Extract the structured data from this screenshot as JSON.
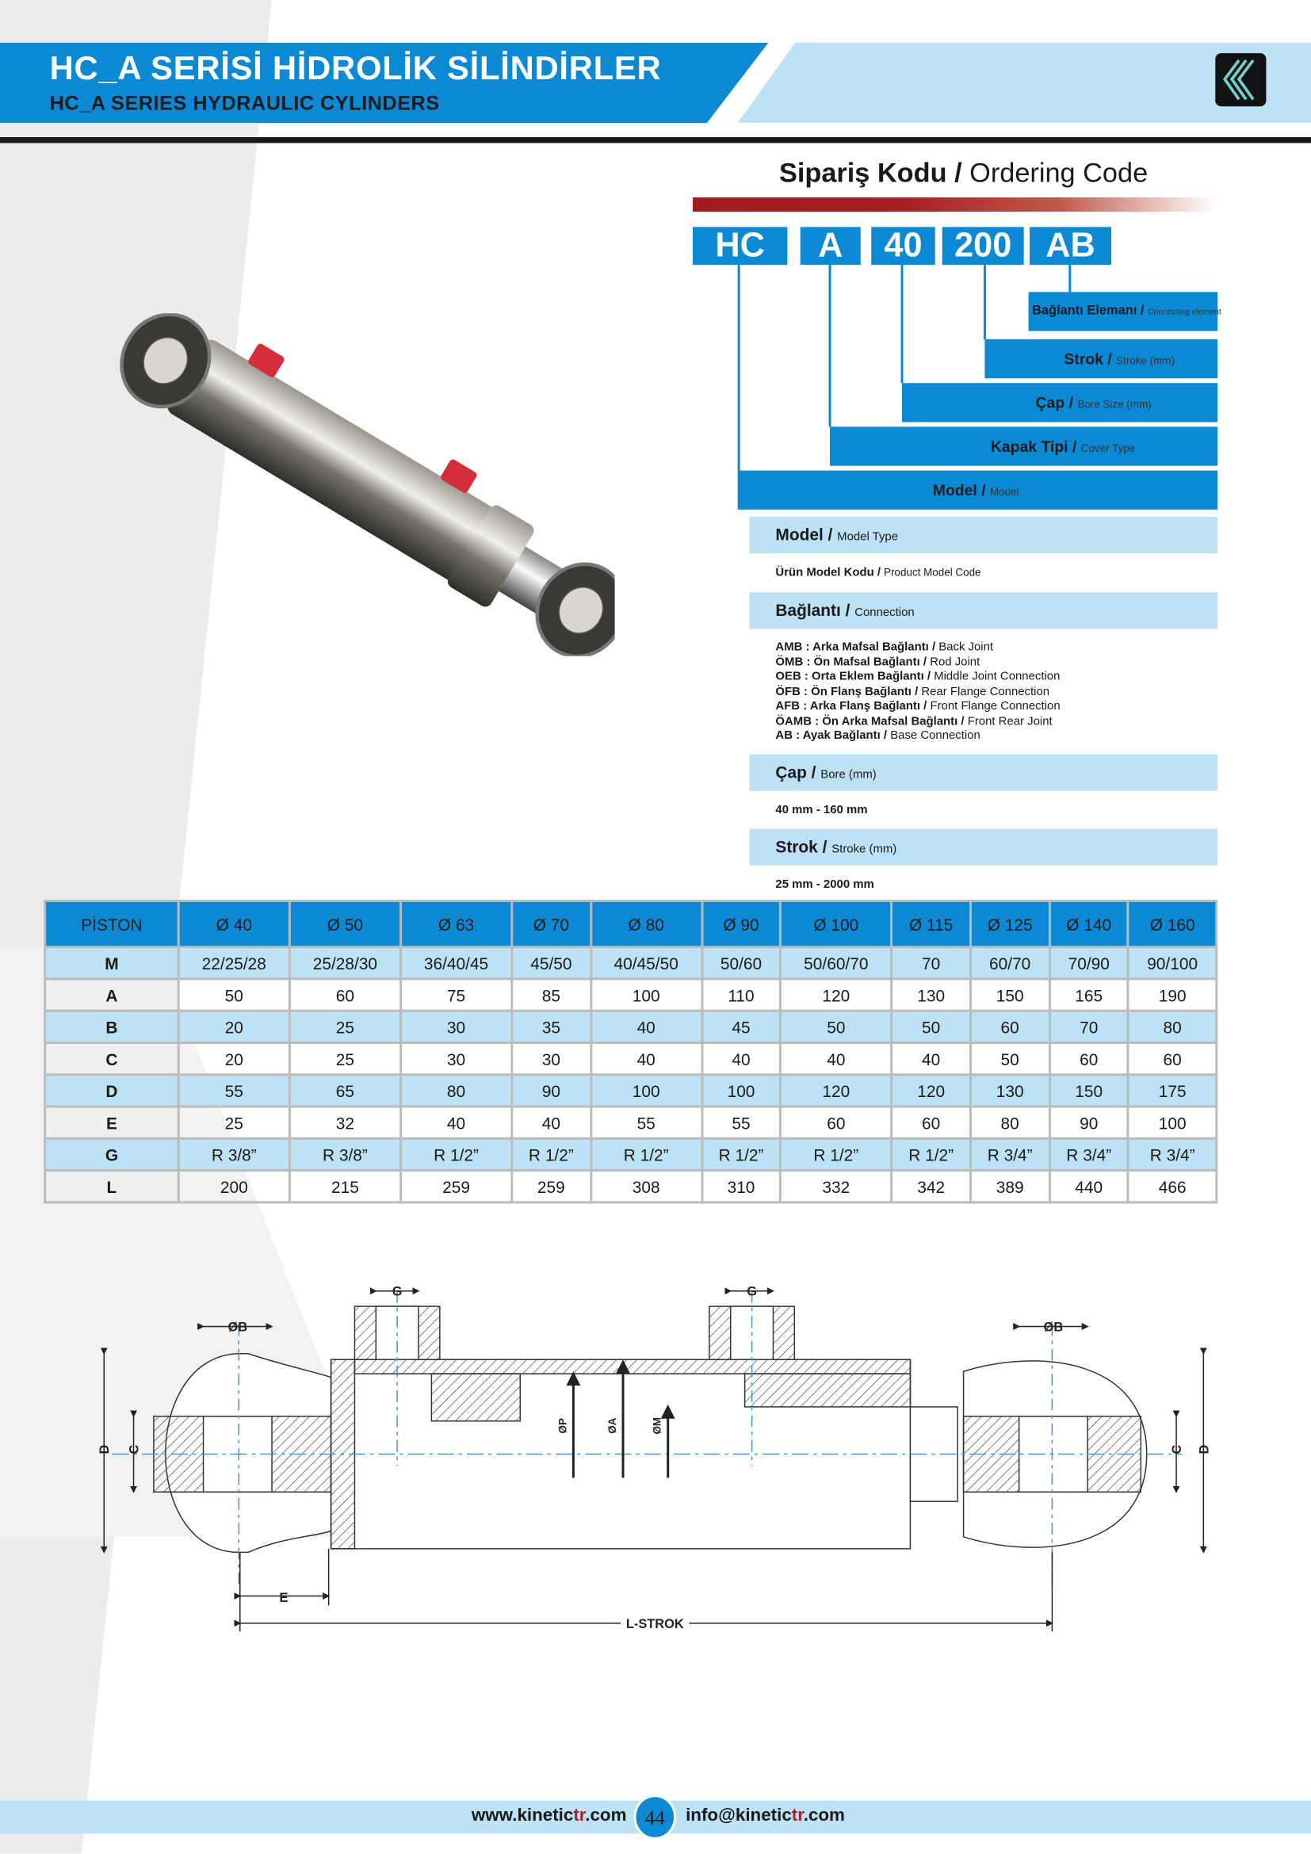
{
  "header": {
    "title": "HC_A SERİSİ HİDROLİK  SİLİNDİRLER",
    "subtitle": "HC_A SERIES HYDRAULIC CYLINDERS",
    "logo": "kinetic-chevron-logo"
  },
  "ordering": {
    "title_tr": "Sipariş Kodu /",
    "title_en": " Ordering Code",
    "codes": [
      "HC",
      "A",
      "40",
      "200",
      "AB"
    ],
    "labels": [
      {
        "tr": "Bağlantı Elemanı / ",
        "en": "Connecting element"
      },
      {
        "tr": "Strok / ",
        "en": "Stroke (mm)"
      },
      {
        "tr": "Çap / ",
        "en": "Bore Size (mm)"
      },
      {
        "tr": "Kapak Tipi / ",
        "en": "Cover Type"
      },
      {
        "tr": "Model / ",
        "en": "Model"
      }
    ]
  },
  "details": {
    "model": {
      "tr": "Model / ",
      "en": "Model Type",
      "value_tr": "Ürün Model Kodu / ",
      "value_en": "Product Model Code"
    },
    "connection": {
      "tr": "Bağlantı / ",
      "en": "Connection",
      "items": [
        {
          "code": "AMB",
          "tr": " : Arka Mafsal Bağlantı / ",
          "en": "Back Joint"
        },
        {
          "code": "ÖMB",
          "tr": " : Ön Mafsal Bağlantı / ",
          "en": "Rod Joint"
        },
        {
          "code": "OEB",
          "tr": " : Orta Eklem Bağlantı / ",
          "en": "Middle Joint Connection"
        },
        {
          "code": "ÖFB",
          "tr": " : Ön Flanş Bağlantı / ",
          "en": "Rear Flange Connection"
        },
        {
          "code": "AFB",
          "tr": " : Arka Flanş Bağlantı / ",
          "en": "Front Flange Connection"
        },
        {
          "code": "ÖAMB",
          "tr": " : Ön Arka Mafsal Bağlantı / ",
          "en": "Front Rear Joint"
        },
        {
          "code": "AB",
          "tr": " : Ayak Bağlantı / ",
          "en": "Base Connection"
        }
      ]
    },
    "bore": {
      "tr": "Çap / ",
      "en": "Bore (mm)",
      "value": "40 mm - 160 mm"
    },
    "stroke": {
      "tr": "Strok / ",
      "en": "Stroke (mm)",
      "value": "25 mm - 2000 mm"
    }
  },
  "table": {
    "columns": [
      "PİSTON",
      "Ø 40",
      "Ø 50",
      "Ø 63",
      "Ø 70",
      "Ø 80",
      "Ø 90",
      "Ø 100",
      "Ø 115",
      "Ø 125",
      "Ø 140",
      "Ø 160"
    ],
    "rows": [
      [
        "M",
        "22/25/28",
        "25/28/30",
        "36/40/45",
        "45/50",
        "40/45/50",
        "50/60",
        "50/60/70",
        "70",
        "60/70",
        "70/90",
        "90/100"
      ],
      [
        "A",
        "50",
        "60",
        "75",
        "85",
        "100",
        "110",
        "120",
        "130",
        "150",
        "165",
        "190"
      ],
      [
        "B",
        "20",
        "25",
        "30",
        "35",
        "40",
        "45",
        "50",
        "50",
        "60",
        "70",
        "80"
      ],
      [
        "C",
        "20",
        "25",
        "30",
        "30",
        "40",
        "40",
        "40",
        "40",
        "50",
        "60",
        "60"
      ],
      [
        "D",
        "55",
        "65",
        "80",
        "90",
        "100",
        "100",
        "120",
        "120",
        "130",
        "150",
        "175"
      ],
      [
        "E",
        "25",
        "32",
        "40",
        "40",
        "55",
        "55",
        "60",
        "60",
        "80",
        "90",
        "100"
      ],
      [
        "G",
        "R 3/8”",
        "R 3/8”",
        "R 1/2”",
        "R 1/2”",
        "R 1/2”",
        "R 1/2”",
        "R 1/2”",
        "R 1/2”",
        "R 3/4”",
        "R 3/4”",
        "R 3/4”"
      ],
      [
        "L",
        "200",
        "215",
        "259",
        "259",
        "308",
        "310",
        "332",
        "342",
        "389",
        "440",
        "466"
      ]
    ]
  },
  "drawing": {
    "labels": {
      "g": "G",
      "b": "ØB",
      "d": "D",
      "c": "C",
      "p": "ØP",
      "a": "ØA",
      "m": "ØM",
      "e": "E",
      "l": "L-STROK"
    }
  },
  "footer": {
    "web_pre": "www.kinetic",
    "web_red": "tr",
    "web_post": ".com",
    "page": "44",
    "mail_pre": "info@kinetic",
    "mail_red": "tr",
    "mail_post": ".com"
  },
  "colors": {
    "brand_blue": "#0a8ad4",
    "light_blue": "#bde2f6",
    "accent_red": "#a21a1d"
  }
}
